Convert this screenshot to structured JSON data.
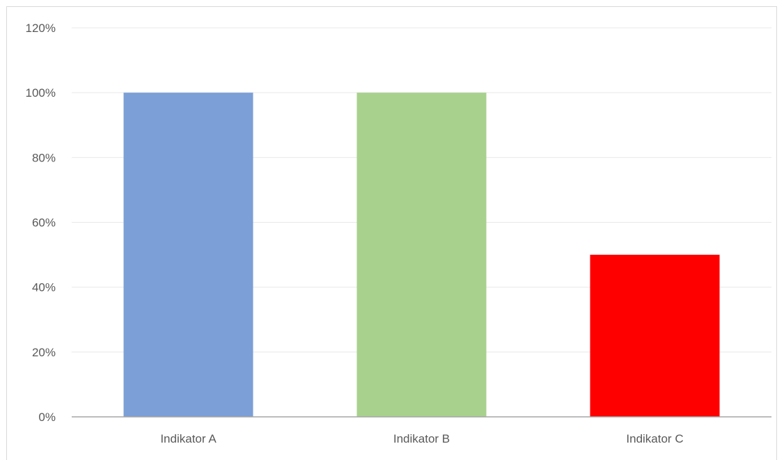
{
  "chart_data": {
    "type": "bar",
    "categories": [
      "Indikator A",
      "Indikator B",
      "Indikator C"
    ],
    "values": [
      1.0,
      1.0,
      0.5
    ],
    "bar_colors": [
      "#7b9fd6",
      "#a8d18d",
      "#ff0000"
    ],
    "ylim": [
      0,
      1.2
    ],
    "yticks": [
      "0%",
      "20%",
      "40%",
      "60%",
      "80%",
      "100%",
      "120%"
    ],
    "grid": true,
    "title": "",
    "xlabel": "",
    "ylabel": ""
  }
}
